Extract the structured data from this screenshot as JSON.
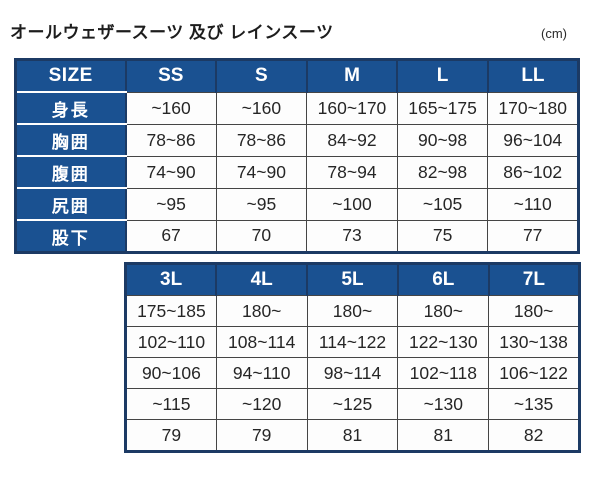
{
  "page": {
    "title": "オールウェザースーツ 及び レインスーツ",
    "unit": "(cm)"
  },
  "colors": {
    "header_blue": "#1a5191",
    "border_navy": "#1c3a64",
    "grid_gray": "#454545",
    "cell_bg": "#fdfdfd",
    "text_dark": "#262626"
  },
  "chart_data": [
    {
      "type": "table",
      "columns": [
        "SIZE",
        "SS",
        "S",
        "M",
        "L",
        "LL"
      ],
      "rows": [
        {
          "label": "身長",
          "values": [
            "~160",
            "~160",
            "160~170",
            "165~175",
            "170~180"
          ]
        },
        {
          "label": "胸囲",
          "values": [
            "78~86",
            "78~86",
            "84~92",
            "90~98",
            "96~104"
          ]
        },
        {
          "label": "腹囲",
          "values": [
            "74~90",
            "74~90",
            "78~94",
            "82~98",
            "86~102"
          ]
        },
        {
          "label": "尻囲",
          "values": [
            "~95",
            "~95",
            "~100",
            "~105",
            "~110"
          ]
        },
        {
          "label": "股下",
          "values": [
            "67",
            "70",
            "73",
            "75",
            "77"
          ]
        }
      ]
    },
    {
      "type": "table",
      "columns": [
        "3L",
        "4L",
        "5L",
        "6L",
        "7L"
      ],
      "rows": [
        {
          "values": [
            "175~185",
            "180~",
            "180~",
            "180~",
            "180~"
          ]
        },
        {
          "values": [
            "102~110",
            "108~114",
            "114~122",
            "122~130",
            "130~138"
          ]
        },
        {
          "values": [
            "90~106",
            "94~110",
            "98~114",
            "102~118",
            "106~122"
          ]
        },
        {
          "values": [
            "~115",
            "~120",
            "~125",
            "~130",
            "~135"
          ]
        },
        {
          "values": [
            "79",
            "79",
            "81",
            "81",
            "82"
          ]
        }
      ]
    }
  ]
}
